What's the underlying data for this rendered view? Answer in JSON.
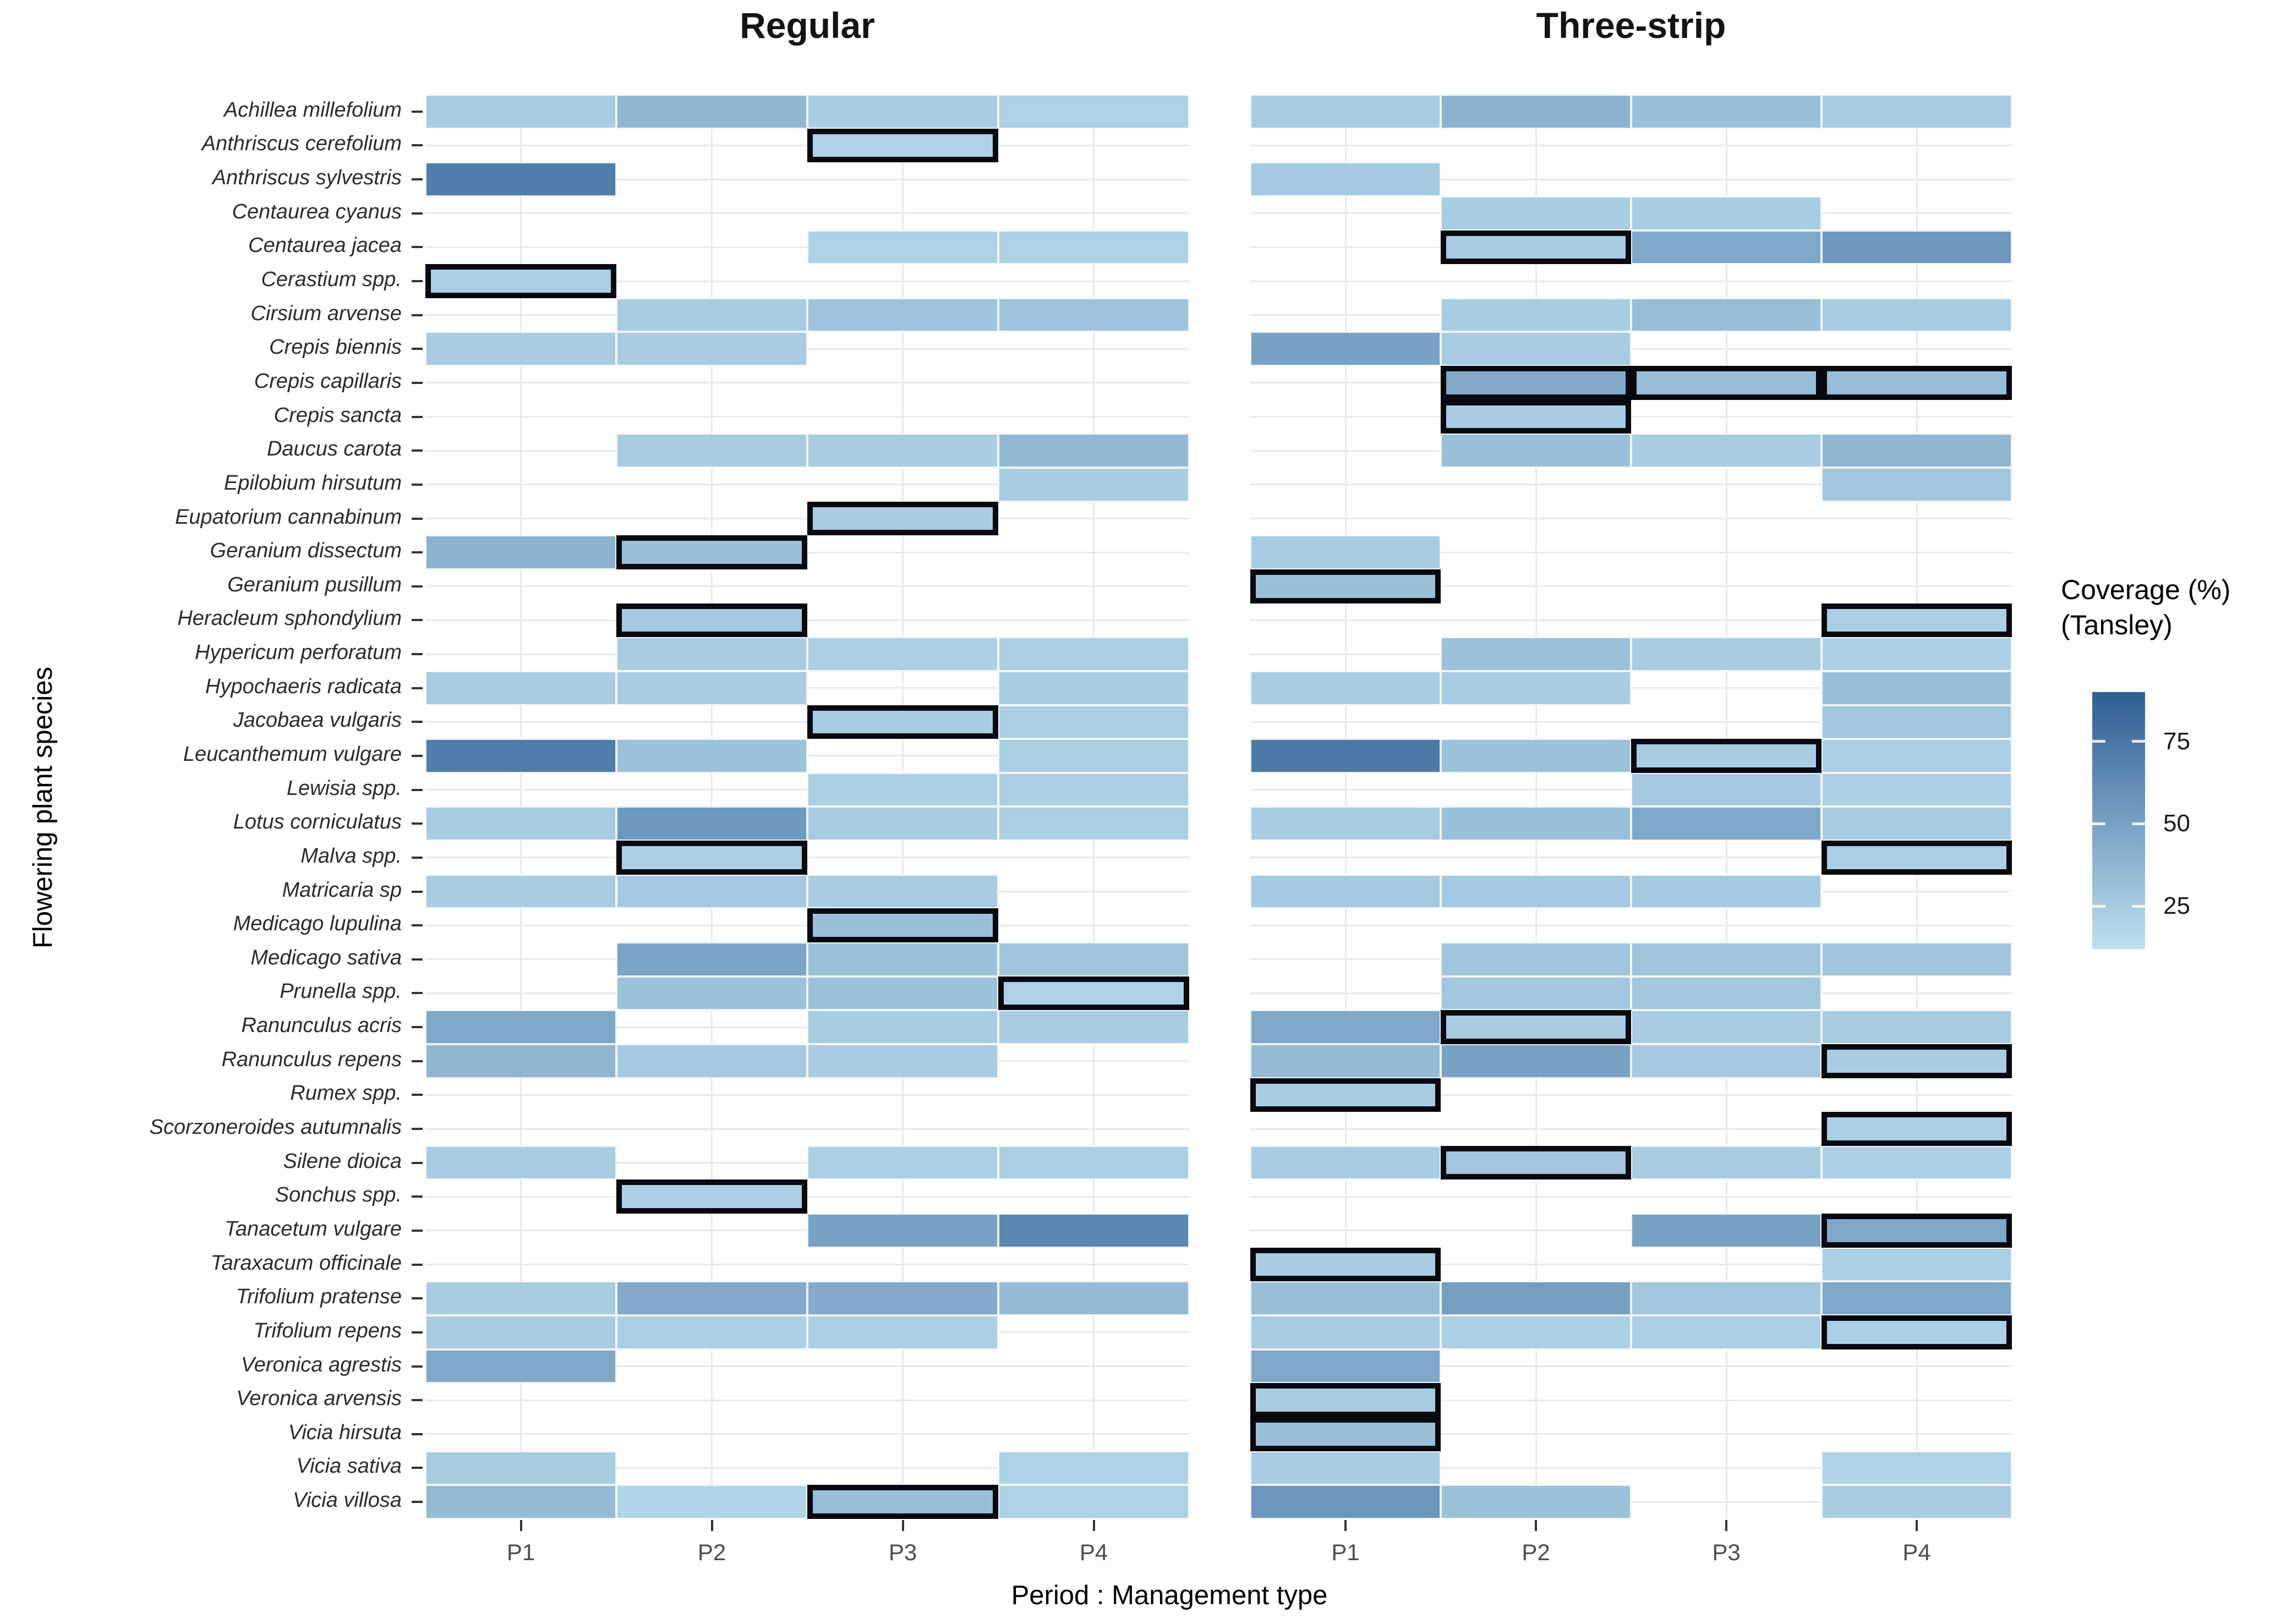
{
  "chart_data": {
    "type": "heatmap",
    "panel_titles": [
      "Regular",
      "Three-strip"
    ],
    "x_categories": [
      "P1",
      "P2",
      "P3",
      "P4"
    ],
    "xlabel": "Period : Management type",
    "ylabel": "Flowering plant species",
    "legend": {
      "title": "Coverage (%)\n(Tansley)",
      "ticks": [
        75,
        50,
        25
      ],
      "scale_min": 5,
      "scale_max": 90,
      "color_low": "#BEE0F0",
      "color_high": "#2E5E93"
    },
    "grid": true,
    "cell_note": "each cell = [coverage_value, outlined_black_border 0/1], null = absent",
    "species": [
      {
        "name": "Achillea millefolium",
        "regular": [
          [
            18,
            0
          ],
          [
            32,
            0
          ],
          [
            18,
            0
          ],
          [
            15,
            0
          ]
        ],
        "three_strip": [
          [
            18,
            0
          ],
          [
            35,
            0
          ],
          [
            26,
            0
          ],
          [
            18,
            0
          ]
        ]
      },
      {
        "name": "Anthriscus cerefolium",
        "regular": [
          null,
          null,
          [
            15,
            1
          ],
          null
        ],
        "three_strip": [
          null,
          null,
          null,
          null
        ]
      },
      {
        "name": "Anthriscus sylvestris",
        "regular": [
          [
            70,
            0
          ],
          null,
          null,
          null
        ],
        "three_strip": [
          [
            20,
            0
          ],
          null,
          null,
          null
        ]
      },
      {
        "name": "Centaurea cyanus",
        "regular": [
          null,
          null,
          null,
          null
        ],
        "three_strip": [
          null,
          [
            18,
            0
          ],
          [
            18,
            0
          ],
          null
        ]
      },
      {
        "name": "Centaurea jacea",
        "regular": [
          null,
          null,
          [
            15,
            0
          ],
          [
            15,
            0
          ]
        ],
        "three_strip": [
          null,
          [
            18,
            1
          ],
          [
            42,
            0
          ],
          [
            52,
            0
          ]
        ]
      },
      {
        "name": "Cerastium spp.",
        "regular": [
          [
            16,
            1
          ],
          null,
          null,
          null
        ],
        "three_strip": [
          null,
          null,
          null,
          null
        ]
      },
      {
        "name": "Cirsium arvense",
        "regular": [
          null,
          [
            18,
            0
          ],
          [
            24,
            0
          ],
          [
            24,
            0
          ]
        ],
        "three_strip": [
          null,
          [
            18,
            0
          ],
          [
            28,
            0
          ],
          [
            18,
            0
          ]
        ]
      },
      {
        "name": "Crepis biennis",
        "regular": [
          [
            18,
            0
          ],
          [
            18,
            0
          ],
          null,
          null
        ],
        "three_strip": [
          [
            46,
            0
          ],
          [
            18,
            0
          ],
          null,
          null
        ]
      },
      {
        "name": "Crepis capillaris",
        "regular": [
          null,
          null,
          null,
          null
        ],
        "three_strip": [
          null,
          [
            40,
            1
          ],
          [
            28,
            1
          ],
          [
            28,
            1
          ]
        ]
      },
      {
        "name": "Crepis sancta",
        "regular": [
          null,
          null,
          null,
          null
        ],
        "three_strip": [
          null,
          [
            18,
            1
          ],
          null,
          null
        ]
      },
      {
        "name": "Daucus carota",
        "regular": [
          null,
          [
            18,
            0
          ],
          [
            18,
            0
          ],
          [
            31,
            0
          ]
        ],
        "three_strip": [
          null,
          [
            26,
            0
          ],
          [
            18,
            0
          ],
          [
            32,
            0
          ]
        ]
      },
      {
        "name": "Epilobium hirsutum",
        "regular": [
          null,
          null,
          null,
          [
            18,
            0
          ]
        ],
        "three_strip": [
          null,
          null,
          null,
          [
            22,
            0
          ]
        ]
      },
      {
        "name": "Eupatorium cannabinum",
        "regular": [
          null,
          null,
          [
            18,
            1
          ],
          null
        ],
        "three_strip": [
          null,
          null,
          null,
          null
        ]
      },
      {
        "name": "Geranium dissectum",
        "regular": [
          [
            35,
            0
          ],
          [
            26,
            1
          ],
          null,
          null
        ],
        "three_strip": [
          [
            18,
            0
          ],
          null,
          null,
          null
        ]
      },
      {
        "name": "Geranium pusillum",
        "regular": [
          null,
          null,
          null,
          null
        ],
        "three_strip": [
          [
            26,
            1
          ],
          null,
          null,
          null
        ]
      },
      {
        "name": "Heracleum sphondylium",
        "regular": [
          null,
          [
            20,
            1
          ],
          null,
          null
        ],
        "three_strip": [
          null,
          null,
          null,
          [
            16,
            1
          ]
        ]
      },
      {
        "name": "Hypericum perforatum",
        "regular": [
          null,
          [
            18,
            0
          ],
          [
            16,
            0
          ],
          [
            16,
            0
          ]
        ],
        "three_strip": [
          null,
          [
            25,
            0
          ],
          [
            18,
            0
          ],
          [
            16,
            0
          ]
        ]
      },
      {
        "name": "Hypochaeris radicata",
        "regular": [
          [
            18,
            0
          ],
          [
            18,
            0
          ],
          null,
          [
            18,
            0
          ]
        ],
        "three_strip": [
          [
            18,
            0
          ],
          [
            18,
            0
          ],
          null,
          [
            26,
            0
          ]
        ]
      },
      {
        "name": "Jacobaea vulgaris",
        "regular": [
          null,
          null,
          [
            18,
            1
          ],
          [
            16,
            0
          ]
        ],
        "three_strip": [
          null,
          null,
          null,
          [
            22,
            0
          ]
        ]
      },
      {
        "name": "Leucanthemum vulgare",
        "regular": [
          [
            70,
            0
          ],
          [
            25,
            0
          ],
          null,
          [
            16,
            0
          ]
        ],
        "three_strip": [
          [
            72,
            0
          ],
          [
            25,
            0
          ],
          [
            18,
            1
          ],
          [
            16,
            0
          ]
        ]
      },
      {
        "name": "Lewisia spp.",
        "regular": [
          null,
          null,
          [
            16,
            0
          ],
          [
            16,
            0
          ]
        ],
        "three_strip": [
          null,
          null,
          [
            20,
            0
          ],
          [
            16,
            0
          ]
        ]
      },
      {
        "name": "Lotus corniculatus",
        "regular": [
          [
            18,
            0
          ],
          [
            52,
            0
          ],
          [
            18,
            0
          ],
          [
            16,
            0
          ]
        ],
        "three_strip": [
          [
            18,
            0
          ],
          [
            26,
            0
          ],
          [
            42,
            0
          ],
          [
            18,
            0
          ]
        ]
      },
      {
        "name": "Malva spp.",
        "regular": [
          null,
          [
            16,
            1
          ],
          null,
          null
        ],
        "three_strip": [
          null,
          null,
          null,
          [
            16,
            1
          ]
        ]
      },
      {
        "name": "Matricaria sp",
        "regular": [
          [
            18,
            0
          ],
          [
            20,
            0
          ],
          [
            18,
            0
          ],
          null
        ],
        "three_strip": [
          [
            20,
            0
          ],
          [
            20,
            0
          ],
          [
            20,
            0
          ],
          null
        ]
      },
      {
        "name": "Medicago lupulina",
        "regular": [
          null,
          null,
          [
            26,
            1
          ],
          null
        ],
        "three_strip": [
          null,
          null,
          null,
          null
        ]
      },
      {
        "name": "Medicago sativa",
        "regular": [
          null,
          [
            44,
            0
          ],
          [
            25,
            0
          ],
          [
            23,
            0
          ]
        ],
        "three_strip": [
          null,
          [
            23,
            0
          ],
          [
            23,
            0
          ],
          [
            23,
            0
          ]
        ]
      },
      {
        "name": "Prunella spp.",
        "regular": [
          null,
          [
            25,
            0
          ],
          [
            25,
            0
          ],
          [
            15,
            1
          ]
        ],
        "three_strip": [
          null,
          [
            22,
            0
          ],
          [
            22,
            0
          ],
          null
        ]
      },
      {
        "name": "Ranunculus acris",
        "regular": [
          [
            42,
            0
          ],
          null,
          [
            18,
            0
          ],
          [
            18,
            0
          ]
        ],
        "three_strip": [
          [
            42,
            0
          ],
          [
            18,
            1
          ],
          [
            18,
            0
          ],
          [
            18,
            0
          ]
        ]
      },
      {
        "name": "Ranunculus repens",
        "regular": [
          [
            32,
            0
          ],
          [
            20,
            0
          ],
          [
            18,
            0
          ],
          null
        ],
        "three_strip": [
          [
            30,
            0
          ],
          [
            46,
            0
          ],
          [
            20,
            0
          ],
          [
            18,
            1
          ]
        ]
      },
      {
        "name": "Rumex spp.",
        "regular": [
          null,
          null,
          null,
          null
        ],
        "three_strip": [
          [
            18,
            1
          ],
          null,
          null,
          null
        ]
      },
      {
        "name": "Scorzoneroides autumnalis",
        "regular": [
          null,
          null,
          null,
          null
        ],
        "three_strip": [
          null,
          null,
          null,
          [
            16,
            1
          ]
        ]
      },
      {
        "name": "Silene dioica",
        "regular": [
          [
            18,
            0
          ],
          null,
          [
            16,
            0
          ],
          [
            16,
            0
          ]
        ],
        "three_strip": [
          [
            18,
            0
          ],
          [
            22,
            1
          ],
          [
            18,
            0
          ],
          [
            16,
            0
          ]
        ]
      },
      {
        "name": "Sonchus spp.",
        "regular": [
          null,
          [
            16,
            1
          ],
          null,
          null
        ],
        "three_strip": [
          null,
          null,
          null,
          null
        ]
      },
      {
        "name": "Tanacetum vulgare",
        "regular": [
          null,
          null,
          [
            46,
            0
          ],
          [
            64,
            0
          ]
        ],
        "three_strip": [
          null,
          null,
          [
            46,
            0
          ],
          [
            42,
            1
          ]
        ]
      },
      {
        "name": "Taraxacum officinale",
        "regular": [
          null,
          null,
          null,
          null
        ],
        "three_strip": [
          [
            18,
            1
          ],
          null,
          null,
          [
            16,
            0
          ]
        ]
      },
      {
        "name": "Trifolium pratense",
        "regular": [
          [
            18,
            0
          ],
          [
            40,
            0
          ],
          [
            40,
            0
          ],
          [
            30,
            0
          ]
        ],
        "three_strip": [
          [
            27,
            0
          ],
          [
            48,
            0
          ],
          [
            22,
            0
          ],
          [
            42,
            0
          ]
        ]
      },
      {
        "name": "Trifolium repens",
        "regular": [
          [
            18,
            0
          ],
          [
            16,
            0
          ],
          [
            16,
            0
          ],
          null
        ],
        "three_strip": [
          [
            18,
            0
          ],
          [
            16,
            0
          ],
          [
            16,
            0
          ],
          [
            16,
            1
          ]
        ]
      },
      {
        "name": "Veronica agrestis",
        "regular": [
          [
            42,
            0
          ],
          null,
          null,
          null
        ],
        "three_strip": [
          [
            42,
            0
          ],
          null,
          null,
          null
        ]
      },
      {
        "name": "Veronica arvensis",
        "regular": [
          null,
          null,
          null,
          null
        ],
        "three_strip": [
          [
            18,
            1
          ],
          null,
          null,
          null
        ]
      },
      {
        "name": "Vicia hirsuta",
        "regular": [
          null,
          null,
          null,
          null
        ],
        "three_strip": [
          [
            26,
            1
          ],
          null,
          null,
          null
        ]
      },
      {
        "name": "Vicia sativa",
        "regular": [
          [
            18,
            0
          ],
          null,
          null,
          [
            15,
            0
          ]
        ],
        "three_strip": [
          [
            18,
            0
          ],
          null,
          null,
          [
            15,
            0
          ]
        ]
      },
      {
        "name": "Vicia villosa",
        "regular": [
          [
            30,
            0
          ],
          [
            13,
            0
          ],
          [
            27,
            1
          ],
          [
            15,
            0
          ]
        ],
        "three_strip": [
          [
            54,
            0
          ],
          [
            25,
            0
          ],
          null,
          [
            18,
            0
          ]
        ]
      }
    ]
  },
  "layout_colors": {
    "gridline": "#E9E9E9",
    "axis_text": "#4d4d4d",
    "outline": "#08080F"
  }
}
